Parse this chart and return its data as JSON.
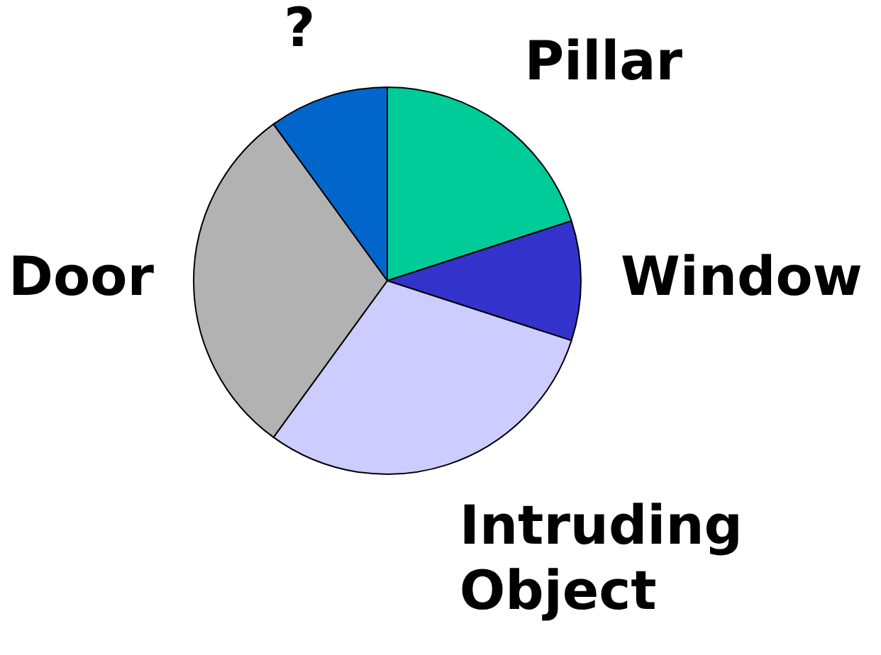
{
  "chart_data": {
    "type": "pie",
    "categories": [
      "Pillar",
      "Window",
      "Intruding Object",
      "Door",
      "?"
    ],
    "values": [
      20,
      10,
      30,
      30,
      10
    ],
    "colors": [
      "#00cc99",
      "#3333cc",
      "#ccccff",
      "#b2b2b2",
      "#0066cc"
    ],
    "legend": false
  }
}
